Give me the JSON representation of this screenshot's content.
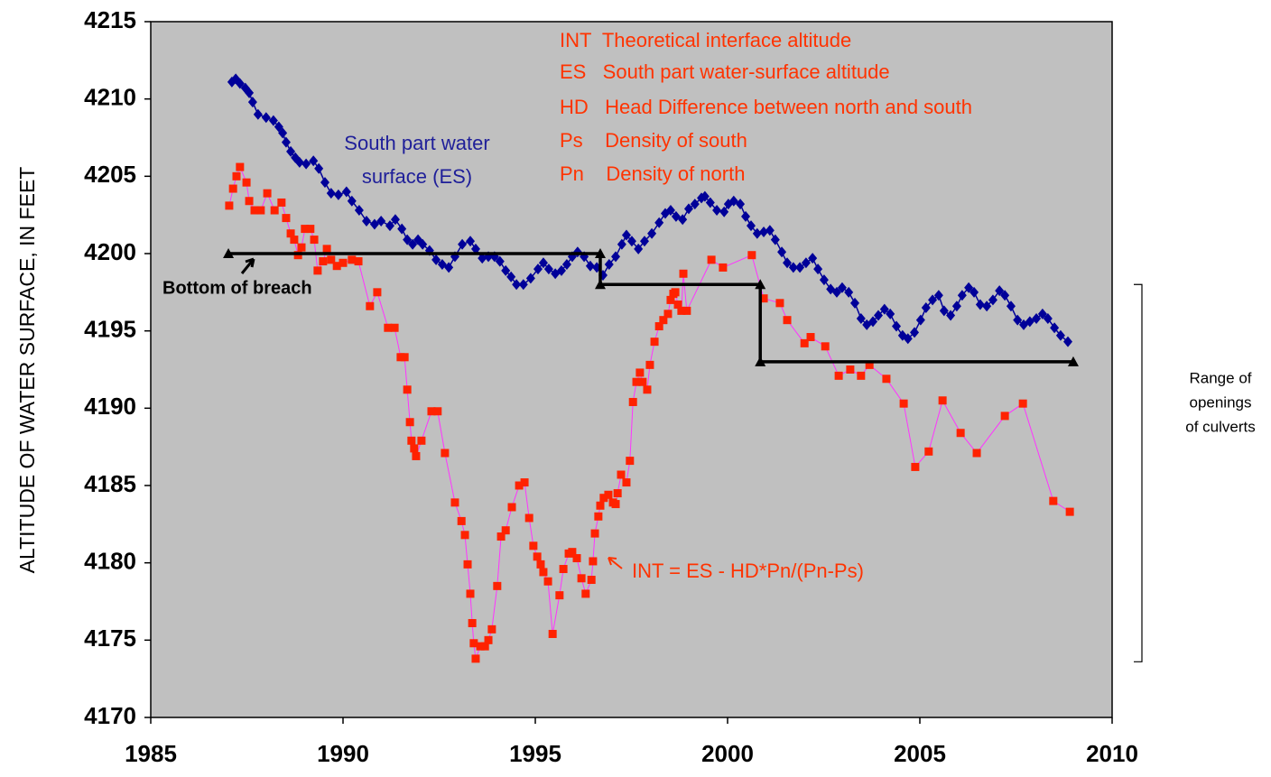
{
  "chart_data": {
    "type": "scatter",
    "y_label": "ALTITUDE OF WATER SURFACE, IN FEET",
    "xlim": [
      1985,
      2010
    ],
    "xticks": [
      1985,
      1990,
      1995,
      2000,
      2005,
      2010
    ],
    "ylim": [
      4170,
      4215
    ],
    "yticks": [
      4170,
      4175,
      4180,
      4185,
      4190,
      4195,
      4200,
      4205,
      4210,
      4215
    ],
    "background": "#c0c0c0",
    "series": [
      {
        "color": "#000099",
        "line_color": "#000099",
        "marker": "diamond",
        "x": [
          1987.11,
          1987.21,
          1987.32,
          1987.46,
          1987.56,
          1987.65,
          1987.79,
          1988.0,
          1988.19,
          1988.33,
          1988.43,
          1988.52,
          1988.64,
          1988.76,
          1988.87,
          1989.04,
          1989.23,
          1989.37,
          1989.53,
          1989.69,
          1989.88,
          1990.09,
          1990.23,
          1990.42,
          1990.61,
          1990.82,
          1990.99,
          1991.22,
          1991.36,
          1991.53,
          1991.67,
          1991.81,
          1991.95,
          1992.07,
          1992.25,
          1992.42,
          1992.58,
          1992.75,
          1992.91,
          1993.1,
          1993.31,
          1993.45,
          1993.62,
          1993.78,
          1993.94,
          1994.08,
          1994.23,
          1994.37,
          1994.51,
          1994.69,
          1994.88,
          1995.07,
          1995.21,
          1995.35,
          1995.52,
          1995.68,
          1995.82,
          1995.96,
          1996.1,
          1996.27,
          1996.43,
          1996.6,
          1996.76,
          1996.92,
          1997.09,
          1997.25,
          1997.37,
          1997.51,
          1997.68,
          1997.84,
          1998.03,
          1998.22,
          1998.38,
          1998.52,
          1998.66,
          1998.83,
          1998.99,
          1999.15,
          1999.32,
          1999.41,
          1999.55,
          1999.72,
          1999.91,
          2000.02,
          2000.16,
          2000.33,
          2000.47,
          2000.61,
          2000.77,
          2000.94,
          2001.1,
          2001.24,
          2001.41,
          2001.55,
          2001.71,
          2001.88,
          2002.04,
          2002.21,
          2002.35,
          2002.51,
          2002.68,
          2002.84,
          2002.98,
          2003.15,
          2003.31,
          2003.47,
          2003.62,
          2003.78,
          2003.92,
          2004.08,
          2004.23,
          2004.39,
          2004.55,
          2004.69,
          2004.86,
          2005.02,
          2005.16,
          2005.33,
          2005.49,
          2005.63,
          2005.8,
          2005.96,
          2006.1,
          2006.27,
          2006.41,
          2006.57,
          2006.74,
          2006.9,
          2007.07,
          2007.21,
          2007.37,
          2007.54,
          2007.7,
          2007.86,
          2008.03,
          2008.19,
          2008.33,
          2008.5,
          2008.66,
          2008.85
        ],
        "values": [
          4211.1,
          4211.3,
          4211.0,
          4210.7,
          4210.4,
          4209.8,
          4209.0,
          4208.8,
          4208.6,
          4208.2,
          4207.8,
          4207.2,
          4206.6,
          4206.2,
          4205.9,
          4205.8,
          4206.0,
          4205.5,
          4204.6,
          4203.9,
          4203.8,
          4204.0,
          4203.4,
          4202.8,
          4202.1,
          4201.9,
          4202.1,
          4201.8,
          4202.2,
          4201.6,
          4200.9,
          4200.6,
          4200.9,
          4200.6,
          4200.2,
          4199.6,
          4199.3,
          4199.1,
          4199.8,
          4200.6,
          4200.8,
          4200.3,
          4199.7,
          4199.8,
          4199.8,
          4199.5,
          4198.9,
          4198.5,
          4198.0,
          4198.0,
          4198.4,
          4199.0,
          4199.4,
          4199.0,
          4198.7,
          4198.9,
          4199.3,
          4199.8,
          4200.1,
          4199.8,
          4199.2,
          4199.1,
          4198.6,
          4199.3,
          4199.8,
          4200.6,
          4201.2,
          4200.8,
          4200.3,
          4200.8,
          4201.3,
          4202.0,
          4202.6,
          4202.8,
          4202.4,
          4202.2,
          4202.9,
          4203.2,
          4203.6,
          4203.7,
          4203.3,
          4202.8,
          4202.7,
          4203.2,
          4203.4,
          4203.2,
          4202.4,
          4201.8,
          4201.3,
          4201.4,
          4201.5,
          4200.9,
          4200.1,
          4199.4,
          4199.1,
          4199.1,
          4199.4,
          4199.7,
          4199.0,
          4198.3,
          4197.7,
          4197.5,
          4197.8,
          4197.5,
          4196.8,
          4195.8,
          4195.4,
          4195.6,
          4196.0,
          4196.4,
          4196.1,
          4195.3,
          4194.7,
          4194.5,
          4194.9,
          4195.7,
          4196.5,
          4197.0,
          4197.3,
          4196.3,
          4196.0,
          4196.6,
          4197.3,
          4197.8,
          4197.5,
          4196.7,
          4196.6,
          4197.0,
          4197.6,
          4197.3,
          4196.6,
          4195.7,
          4195.4,
          4195.6,
          4195.8,
          4196.1,
          4195.8,
          4195.2,
          4194.7,
          4194.3
        ]
      },
      {
        "color": "#ff2200",
        "line_color": "#ff33ff",
        "marker": "square",
        "x": [
          1987.04,
          1987.14,
          1987.23,
          1987.32,
          1987.49,
          1987.56,
          1987.7,
          1987.86,
          1988.03,
          1988.22,
          1988.4,
          1988.52,
          1988.64,
          1988.73,
          1988.83,
          1988.92,
          1989.01,
          1989.15,
          1989.25,
          1989.34,
          1989.48,
          1989.58,
          1989.69,
          1989.84,
          1990.0,
          1990.23,
          1990.4,
          1990.7,
          1990.89,
          1991.17,
          1991.34,
          1991.5,
          1991.6,
          1991.67,
          1991.74,
          1991.78,
          1991.85,
          1991.9,
          1992.04,
          1992.3,
          1992.46,
          1992.65,
          1992.91,
          1993.08,
          1993.17,
          1993.24,
          1993.31,
          1993.36,
          1993.4,
          1993.45,
          1993.57,
          1993.69,
          1993.78,
          1993.87,
          1994.01,
          1994.11,
          1994.23,
          1994.39,
          1994.58,
          1994.72,
          1994.84,
          1994.95,
          1995.05,
          1995.14,
          1995.21,
          1995.33,
          1995.45,
          1995.63,
          1995.73,
          1995.87,
          1995.96,
          1996.08,
          1996.2,
          1996.31,
          1996.46,
          1996.5,
          1996.55,
          1996.64,
          1996.69,
          1996.78,
          1996.9,
          1997.02,
          1997.09,
          1997.14,
          1997.23,
          1997.37,
          1997.46,
          1997.54,
          1997.63,
          1997.72,
          1997.79,
          1997.91,
          1997.98,
          1998.1,
          1998.22,
          1998.33,
          1998.45,
          1998.52,
          1998.59,
          1998.64,
          1998.71,
          1998.8,
          1998.85,
          1998.94,
          1999.58,
          1999.88,
          2000.63,
          2000.94,
          2001.36,
          2001.55,
          2002.0,
          2002.16,
          2002.54,
          2002.89,
          2003.19,
          2003.47,
          2003.69,
          2004.13,
          2004.58,
          2004.88,
          2005.23,
          2005.59,
          2006.06,
          2006.48,
          2007.21,
          2007.68,
          2008.47,
          2008.9
        ],
        "values": [
          4203.1,
          4204.2,
          4205.0,
          4205.6,
          4204.6,
          4203.4,
          4202.8,
          4202.8,
          4203.9,
          4202.8,
          4203.3,
          4202.3,
          4201.3,
          4200.9,
          4199.9,
          4200.4,
          4201.6,
          4201.6,
          4200.9,
          4198.9,
          4199.5,
          4200.3,
          4199.6,
          4199.2,
          4199.4,
          4199.6,
          4199.5,
          4196.6,
          4197.5,
          4195.2,
          4195.2,
          4193.3,
          4193.3,
          4191.2,
          4189.1,
          4187.9,
          4187.4,
          4186.9,
          4187.9,
          4189.8,
          4189.8,
          4187.1,
          4183.9,
          4182.7,
          4181.8,
          4179.9,
          4178.0,
          4176.1,
          4174.8,
          4173.8,
          4174.6,
          4174.6,
          4175.0,
          4175.7,
          4178.5,
          4181.7,
          4182.1,
          4183.6,
          4185.0,
          4185.2,
          4182.9,
          4181.1,
          4180.4,
          4179.9,
          4179.4,
          4178.8,
          4175.4,
          4177.9,
          4179.6,
          4180.6,
          4180.7,
          4180.3,
          4179.0,
          4178.0,
          4178.9,
          4180.1,
          4181.9,
          4183.0,
          4183.7,
          4184.2,
          4184.4,
          4183.9,
          4183.8,
          4184.5,
          4185.7,
          4185.2,
          4186.6,
          4190.4,
          4191.7,
          4192.3,
          4191.7,
          4191.2,
          4192.8,
          4194.3,
          4195.3,
          4195.7,
          4196.1,
          4197.0,
          4197.4,
          4197.5,
          4196.7,
          4196.3,
          4198.7,
          4196.3,
          4199.6,
          4199.1,
          4199.9,
          4197.1,
          4196.8,
          4195.7,
          4194.2,
          4194.6,
          4194.0,
          4192.1,
          4192.5,
          4192.1,
          4192.8,
          4191.9,
          4190.3,
          4186.2,
          4187.2,
          4190.5,
          4188.4,
          4187.1,
          4189.5,
          4190.3,
          4184.0,
          4183.3
        ]
      },
      {
        "color": "#000000",
        "line_color": "#000000",
        "marker": "triangle",
        "x": [
          1987.02,
          1996.69,
          1996.69,
          2000.85,
          2000.85,
          2008.99
        ],
        "values": [
          4200,
          4200,
          4198,
          4198,
          4193,
          4193
        ]
      }
    ],
    "annotations": [
      {
        "text": "INT  Theoretical interface altitude",
        "color": "#ff3300"
      },
      {
        "text": "ES   South part water-surface altitude",
        "color": "#ff3300"
      },
      {
        "text": "HD   Head Difference between north and south",
        "color": "#ff3300"
      },
      {
        "text": "Ps    Density of south",
        "color": "#ff3300"
      },
      {
        "text": "Pn    Density of north",
        "color": "#ff3300"
      },
      {
        "text": "South part water",
        "color": "#1f1f99"
      },
      {
        "text": "surface (ES)",
        "color": "#1f1f99"
      },
      {
        "text": "Bottom of breach",
        "color": "#000000"
      },
      {
        "text": "INT = ES - HD*Pn/(Pn-Ps)",
        "color": "#ff3300"
      }
    ],
    "bracket": {
      "ylim": [
        4198.0,
        4173.6
      ],
      "label": [
        "Range of",
        "openings",
        "of culverts"
      ]
    }
  }
}
